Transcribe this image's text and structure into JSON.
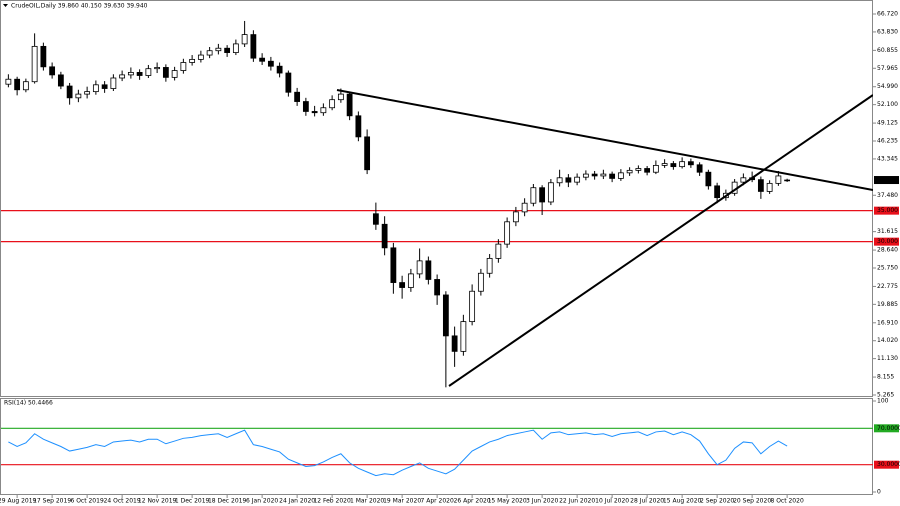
{
  "header": "CrudeOIL,Daily 39.860 40.150 39.630 39.940",
  "chart_data": [
    {
      "type": "candlestick",
      "up_color": "#ffffff",
      "down_color": "#000000",
      "wick_color": "#000000",
      "categories": [
        null,
        "29 Aug 2019",
        null,
        null,
        null,
        "17 Sep 2019",
        null,
        null,
        null,
        "6 Oct 2019",
        null,
        null,
        null,
        "24 Oct 2019",
        null,
        null,
        null,
        "12 Nov 2019",
        null,
        null,
        null,
        "1 Dec 2019",
        null,
        null,
        null,
        "18 Dec 2019",
        null,
        null,
        null,
        "6 Jan 2020",
        null,
        null,
        null,
        "24 Jan 2020",
        null,
        null,
        null,
        "12 Feb 2020",
        null,
        null,
        null,
        "1 Mar 2020",
        null,
        null,
        null,
        "19 Mar 2020",
        null,
        null,
        null,
        "7 Apr 2020",
        null,
        null,
        null,
        "26 Apr 2020",
        null,
        null,
        null,
        "15 May 2020",
        null,
        null,
        null,
        "3 Jun 2020",
        null,
        null,
        null,
        "22 Jun 2020",
        null,
        null,
        null,
        "10 Jul 2020",
        null,
        null,
        null,
        "28 Jul 2020",
        null,
        null,
        null,
        "15 Aug 2020",
        null,
        null,
        null,
        "2 Sep 2020",
        null,
        null,
        null,
        "20 Sep 2020",
        null,
        null,
        null,
        "8 Oct 2020"
      ],
      "candles": [
        [
          55.4,
          57.0,
          54.9,
          56.2
        ],
        [
          56.2,
          56.6,
          53.6,
          54.5
        ],
        [
          54.5,
          56.3,
          54.1,
          55.8
        ],
        [
          55.8,
          63.6,
          55.5,
          61.5
        ],
        [
          61.5,
          62.1,
          57.6,
          58.2
        ],
        [
          58.2,
          58.9,
          56.3,
          56.9
        ],
        [
          56.9,
          57.4,
          54.6,
          55.1
        ],
        [
          55.1,
          55.6,
          52.1,
          53.2
        ],
        [
          53.2,
          54.5,
          52.5,
          53.8
        ],
        [
          53.8,
          55.0,
          53.1,
          54.2
        ],
        [
          54.2,
          56.0,
          53.7,
          55.3
        ],
        [
          55.3,
          55.9,
          54.0,
          54.7
        ],
        [
          54.7,
          57.0,
          54.3,
          56.4
        ],
        [
          56.4,
          57.6,
          55.9,
          56.9
        ],
        [
          56.9,
          58.1,
          56.3,
          57.3
        ],
        [
          57.3,
          57.8,
          56.1,
          56.8
        ],
        [
          56.8,
          58.5,
          56.4,
          57.9
        ],
        [
          57.9,
          58.9,
          57.2,
          58.1
        ],
        [
          58.1,
          58.6,
          55.8,
          56.5
        ],
        [
          56.5,
          58.2,
          56.0,
          57.6
        ],
        [
          57.6,
          59.5,
          57.1,
          58.9
        ],
        [
          58.9,
          60.1,
          58.4,
          59.4
        ],
        [
          59.4,
          60.8,
          58.9,
          60.1
        ],
        [
          60.1,
          61.4,
          59.6,
          60.8
        ],
        [
          60.8,
          61.9,
          60.2,
          61.2
        ],
        [
          61.2,
          61.7,
          59.8,
          60.5
        ],
        [
          60.5,
          62.6,
          60.1,
          61.9
        ],
        [
          61.9,
          65.6,
          61.4,
          63.4
        ],
        [
          63.4,
          64.1,
          59.0,
          59.6
        ],
        [
          59.6,
          60.4,
          58.5,
          59.1
        ],
        [
          59.1,
          59.8,
          57.6,
          58.3
        ],
        [
          58.3,
          58.9,
          56.5,
          57.2
        ],
        [
          57.2,
          57.6,
          53.4,
          54.1
        ],
        [
          54.1,
          54.8,
          51.9,
          52.6
        ],
        [
          52.6,
          53.2,
          50.3,
          51.0
        ],
        [
          51.0,
          51.9,
          50.2,
          50.8
        ],
        [
          50.8,
          52.3,
          50.3,
          51.6
        ],
        [
          51.6,
          53.6,
          51.2,
          52.9
        ],
        [
          52.9,
          54.7,
          52.4,
          53.8
        ],
        [
          53.8,
          54.2,
          49.6,
          50.3
        ],
        [
          50.3,
          51.0,
          46.2,
          46.9
        ],
        [
          46.9,
          48.1,
          40.9,
          41.6
        ],
        [
          34.5,
          36.3,
          31.9,
          32.8
        ],
        [
          32.8,
          34.1,
          27.8,
          29.0
        ],
        [
          29.0,
          29.8,
          21.6,
          23.4
        ],
        [
          23.4,
          24.5,
          20.8,
          22.6
        ],
        [
          22.6,
          25.6,
          21.9,
          24.8
        ],
        [
          24.8,
          28.9,
          24.1,
          26.9
        ],
        [
          26.9,
          27.6,
          23.1,
          23.9
        ],
        [
          23.9,
          24.7,
          19.8,
          21.4
        ],
        [
          21.4,
          22.0,
          6.5,
          14.8
        ],
        [
          14.8,
          16.3,
          9.8,
          12.3
        ],
        [
          12.3,
          18.2,
          11.6,
          17.1
        ],
        [
          17.1,
          23.1,
          16.5,
          22.0
        ],
        [
          22.0,
          25.6,
          21.3,
          24.9
        ],
        [
          24.9,
          28.0,
          24.2,
          27.3
        ],
        [
          27.3,
          30.4,
          26.6,
          29.6
        ],
        [
          29.6,
          33.9,
          29.0,
          33.2
        ],
        [
          33.2,
          35.6,
          32.5,
          34.8
        ],
        [
          34.8,
          37.0,
          34.1,
          36.2
        ],
        [
          36.2,
          39.3,
          35.7,
          38.7
        ],
        [
          38.7,
          39.1,
          34.3,
          36.4
        ],
        [
          36.4,
          40.1,
          35.9,
          39.5
        ],
        [
          39.5,
          41.6,
          38.9,
          40.3
        ],
        [
          40.3,
          40.9,
          38.8,
          39.6
        ],
        [
          39.6,
          41.0,
          39.1,
          40.4
        ],
        [
          40.4,
          41.5,
          39.9,
          40.9
        ],
        [
          40.9,
          41.4,
          40.0,
          40.6
        ],
        [
          40.6,
          41.6,
          40.1,
          40.9
        ],
        [
          40.9,
          41.3,
          39.6,
          40.2
        ],
        [
          40.2,
          41.7,
          39.8,
          41.1
        ],
        [
          41.1,
          42.0,
          40.6,
          41.5
        ],
        [
          41.5,
          42.3,
          41.0,
          41.8
        ],
        [
          41.8,
          42.2,
          40.7,
          41.2
        ],
        [
          41.2,
          43.1,
          40.9,
          42.3
        ],
        [
          42.3,
          43.3,
          41.9,
          42.6
        ],
        [
          42.6,
          43.0,
          41.6,
          42.1
        ],
        [
          42.1,
          43.6,
          41.8,
          42.9
        ],
        [
          42.9,
          43.4,
          41.9,
          42.4
        ],
        [
          42.4,
          42.8,
          40.6,
          41.2
        ],
        [
          41.2,
          41.6,
          38.4,
          39.0
        ],
        [
          39.0,
          39.5,
          36.2,
          37.1
        ],
        [
          37.1,
          38.4,
          36.6,
          37.8
        ],
        [
          37.8,
          40.1,
          37.4,
          39.6
        ],
        [
          39.6,
          41.0,
          39.1,
          40.3
        ],
        [
          40.3,
          41.3,
          39.6,
          40.0
        ],
        [
          40.0,
          40.5,
          36.9,
          38.1
        ],
        [
          38.1,
          39.9,
          37.7,
          39.4
        ],
        [
          39.4,
          41.4,
          39.0,
          40.6
        ],
        [
          39.86,
          40.15,
          39.63,
          39.94
        ]
      ],
      "ylim": [
        4.94,
        67.69
      ],
      "yticks": [
        {
          "value": 66.72,
          "label": "66.720"
        },
        {
          "value": 63.83,
          "label": "63.830"
        },
        {
          "value": 60.855,
          "label": "60.855"
        },
        {
          "value": 57.965,
          "label": "57.965"
        },
        {
          "value": 54.99,
          "label": "54.990"
        },
        {
          "value": 52.1,
          "label": "52.100"
        },
        {
          "value": 49.125,
          "label": "49.125"
        },
        {
          "value": 46.235,
          "label": "46.235"
        },
        {
          "value": 43.345,
          "label": "43.345"
        },
        {
          "value": 37.48,
          "label": "37.480"
        },
        {
          "value": 31.615,
          "label": "31.615"
        },
        {
          "value": 28.64,
          "label": "28.640"
        },
        {
          "value": 25.75,
          "label": "25.750"
        },
        {
          "value": 22.775,
          "label": "22.775"
        },
        {
          "value": 19.885,
          "label": "19.885"
        },
        {
          "value": 16.91,
          "label": "16.910"
        },
        {
          "value": 14.02,
          "label": "14.020"
        },
        {
          "value": 11.13,
          "label": "11.130"
        },
        {
          "value": 8.155,
          "label": "8.155"
        },
        {
          "value": 5.265,
          "label": "5.265"
        }
      ],
      "hlines": [
        {
          "value": 35,
          "label": "35.000",
          "color": "#e8101a"
        },
        {
          "value": 30,
          "label": "30.000",
          "color": "#e8101a"
        }
      ],
      "last_price": {
        "value": 39.94,
        "label": "39.940",
        "color": "#000000"
      }
    },
    {
      "type": "line",
      "title": "RSI(14) 50.4466",
      "color": "#1e90ff",
      "values": [
        55,
        50,
        54,
        64,
        58,
        54,
        50,
        45,
        47,
        49,
        52,
        50,
        55,
        56,
        57,
        55,
        58,
        58,
        53,
        56,
        59,
        60,
        62,
        63,
        64,
        60,
        64,
        68,
        52,
        50,
        47,
        44,
        36,
        32,
        28,
        29,
        33,
        38,
        42,
        32,
        26,
        22,
        18,
        20,
        19,
        24,
        28,
        32,
        26,
        23,
        20,
        25,
        35,
        45,
        50,
        55,
        58,
        62,
        64,
        66,
        68,
        58,
        65,
        66,
        63,
        64,
        65,
        63,
        64,
        61,
        64,
        65,
        66,
        62,
        66,
        67,
        63,
        66,
        63,
        56,
        42,
        30,
        35,
        48,
        55,
        54,
        42,
        50,
        56,
        50.4466
      ],
      "ylim": [
        -4.4,
        103.3
      ],
      "yticks": [
        0,
        100
      ],
      "levels": [
        {
          "value": 70,
          "label": "70.0000",
          "color": "#22aa22"
        },
        {
          "value": 30,
          "label": "30.0000",
          "color": "#e8101a"
        }
      ]
    }
  ]
}
